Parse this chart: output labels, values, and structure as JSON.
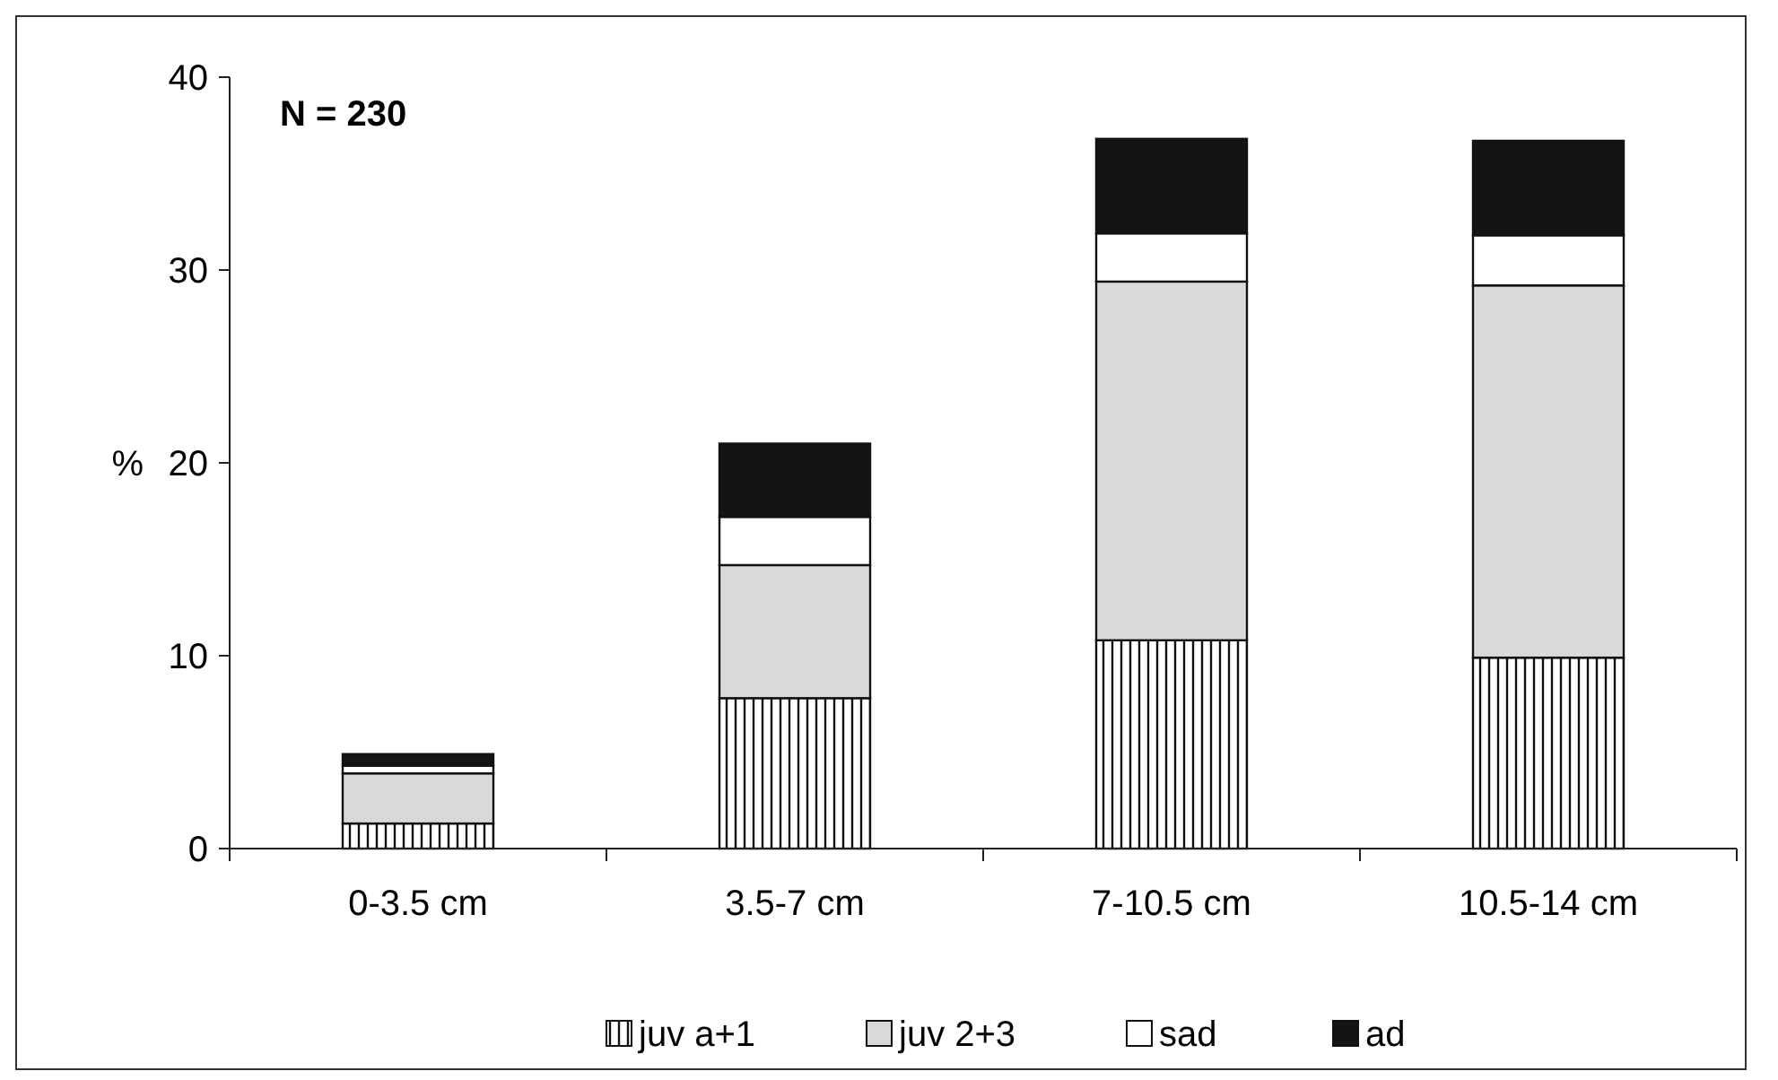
{
  "chart_data": {
    "type": "bar",
    "stacked": true,
    "ylabel": "%",
    "categories": [
      "0-3.5 cm",
      "3.5-7 cm",
      "7-10.5 cm",
      "10.5-14 cm"
    ],
    "series": [
      {
        "name": "juv a+1",
        "color": "#111111",
        "values": [
          1.3,
          7.8,
          10.8,
          9.9
        ]
      },
      {
        "name": "juv 2+3",
        "color": "#d9d9d9",
        "values": [
          2.6,
          6.9,
          18.6,
          19.3
        ]
      },
      {
        "name": "sad",
        "color": "#ffffff",
        "values": [
          0.4,
          2.5,
          2.5,
          2.6
        ]
      },
      {
        "name": "ad",
        "color": "#141414",
        "values": [
          0.6,
          3.8,
          4.9,
          4.9
        ]
      }
    ],
    "ylim": [
      0,
      40
    ],
    "yticks": [
      0,
      10,
      20,
      30,
      40
    ],
    "grid": false,
    "legend": "bottom",
    "annotations": [
      "N = 230"
    ]
  }
}
